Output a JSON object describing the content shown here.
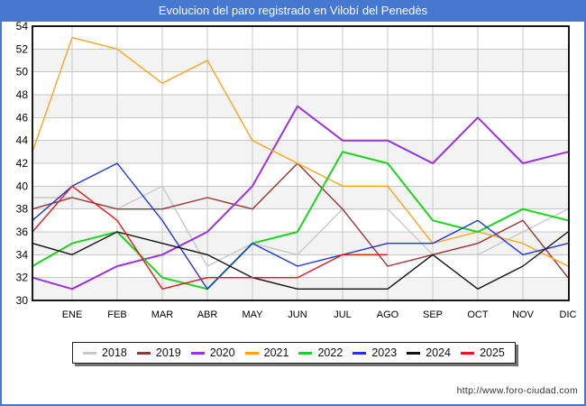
{
  "title": "Evolucion del paro registrado en Vilobí del Penedès",
  "footer": {
    "url": "http://www.foro-ciudad.com"
  },
  "colors": {
    "accent_blue": "#4678d0",
    "plot_border": "#000000",
    "gridline": "#c8c8c8",
    "band": "#f3f3f3",
    "legend_border": "#222222",
    "label_text": "#000000",
    "url_text": "#333333"
  },
  "chart_data": {
    "type": "line",
    "title": "Evolucion del paro registrado en Vilobí del Penedès",
    "xlabel": "",
    "ylabel": "",
    "grid": true,
    "legend_position": "bottom",
    "x_axis": {
      "months": [
        "ENE",
        "FEB",
        "MAR",
        "ABR",
        "MAY",
        "JUN",
        "JUL",
        "AGO",
        "SEP",
        "OCT",
        "NOV",
        "DIC"
      ],
      "x_note": "each series has 13 points: first value sits on the left plot edge, then one value per month gridline ENE..DIC"
    },
    "y_axis": {
      "min": 30,
      "max": 54,
      "tick_step": 2,
      "ticks": [
        54,
        52,
        50,
        48,
        46,
        44,
        42,
        40,
        38,
        36,
        34,
        32,
        30
      ]
    },
    "series": [
      {
        "name": "2018",
        "color": "#c8c8c8",
        "values": [
          39,
          39,
          38,
          40,
          33,
          35,
          34,
          38,
          38,
          34,
          34,
          36,
          38
        ]
      },
      {
        "name": "2019",
        "color": "#993333",
        "values": [
          38,
          39,
          38,
          38,
          39,
          38,
          42,
          38,
          33,
          34,
          35,
          37,
          32
        ]
      },
      {
        "name": "2020",
        "color": "#9933dd",
        "values": [
          32,
          31,
          33,
          34,
          36,
          40,
          47,
          44,
          44,
          42,
          46,
          42,
          43
        ]
      },
      {
        "name": "2021",
        "color": "#ffa31e",
        "values": [
          43,
          53,
          52,
          49,
          51,
          44,
          42,
          40,
          40,
          35,
          36,
          35,
          33
        ]
      },
      {
        "name": "2022",
        "color": "#1ed31e",
        "values": [
          33,
          35,
          36,
          32,
          31,
          35,
          36,
          43,
          42,
          37,
          36,
          38,
          37
        ]
      },
      {
        "name": "2023",
        "color": "#2233dd",
        "values": [
          37,
          40,
          42,
          37,
          31,
          35,
          33,
          34,
          35,
          35,
          37,
          34,
          35
        ]
      },
      {
        "name": "2024",
        "color": "#111111",
        "values": [
          35,
          34,
          36,
          35,
          34,
          32,
          31,
          31,
          31,
          34,
          31,
          33,
          36
        ]
      },
      {
        "name": "2025",
        "color": "#e81717",
        "values": [
          36,
          40,
          37,
          31,
          32,
          32,
          32,
          34,
          34,
          null,
          null,
          null,
          null
        ]
      }
    ]
  }
}
